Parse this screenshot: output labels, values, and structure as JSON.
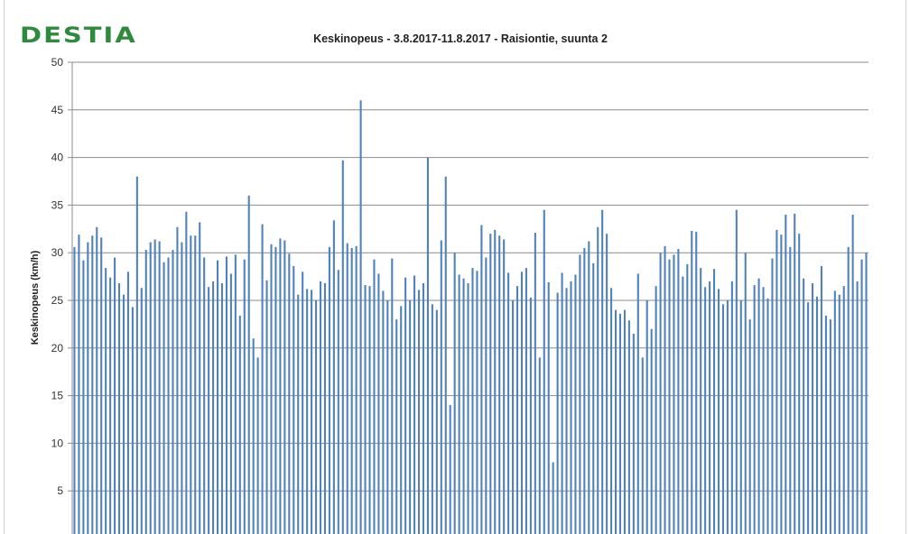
{
  "logo": {
    "text": "DESTIA",
    "color": "#2f8a3e"
  },
  "chart_data": {
    "type": "bar",
    "title": "Keskinopeus - 3.8.2017-11.8.2017 - Raisiontie, suunta 2",
    "xlabel": "",
    "ylabel": "Keskinopeus (km/h)",
    "ylim": [
      0,
      50
    ],
    "yticks": [
      5,
      10,
      15,
      20,
      25,
      30,
      35,
      40,
      45,
      50
    ],
    "grid": true,
    "bar_color": "#4f81bd",
    "values": [
      30.6,
      31.9,
      29.2,
      31.1,
      31.8,
      32.7,
      31.6,
      28.4,
      27.4,
      29.5,
      26.8,
      25.6,
      28.0,
      24.3,
      38.0,
      26.3,
      30.3,
      31.1,
      31.4,
      31.2,
      29.0,
      29.5,
      30.3,
      32.7,
      31.1,
      34.3,
      31.8,
      31.8,
      33.2,
      29.5,
      26.4,
      27.0,
      29.2,
      26.8,
      29.6,
      27.8,
      29.8,
      23.4,
      29.3,
      36.0,
      21.0,
      19.0,
      33.0,
      27.1,
      30.9,
      30.6,
      31.5,
      31.3,
      29.9,
      28.6,
      25.6,
      28.0,
      26.2,
      26.1,
      25.0,
      27.0,
      26.8,
      30.6,
      33.4,
      28.2,
      39.7,
      31.0,
      30.5,
      30.7,
      46.0,
      26.6,
      26.5,
      29.3,
      27.8,
      26.0,
      25.0,
      29.4,
      23.0,
      24.4,
      27.4,
      25.0,
      27.6,
      26.1,
      26.8,
      40.0,
      24.6,
      24.0,
      31.3,
      38.0,
      14.0,
      30.0,
      27.7,
      27.3,
      26.8,
      28.4,
      28.1,
      32.9,
      29.5,
      32.0,
      32.4,
      31.8,
      31.4,
      27.9,
      25.0,
      26.5,
      28.0,
      28.4,
      25.3,
      32.1,
      19.0,
      34.5,
      26.9,
      8.0,
      25.8,
      27.9,
      26.3,
      27.0,
      27.7,
      29.8,
      30.5,
      31.2,
      28.9,
      32.7,
      34.5,
      32.0,
      26.3,
      24.0,
      23.6,
      24.0,
      22.9,
      21.5,
      27.8,
      19.0,
      25.0,
      22.0,
      26.5,
      30.0,
      30.7,
      29.3,
      29.8,
      30.4,
      27.5,
      28.8,
      32.3,
      32.2,
      28.4,
      26.4,
      27.0,
      28.3,
      26.2,
      24.6,
      25.0,
      27.0,
      34.5,
      25.0,
      30.0,
      23.0,
      26.6,
      27.3,
      26.4,
      25.2,
      29.4,
      32.4,
      31.9,
      34.0,
      30.6,
      34.1,
      32.0,
      27.3,
      24.8,
      26.8,
      25.4,
      28.6,
      23.4,
      23.0,
      26.0,
      25.6,
      26.5,
      30.6,
      34.0,
      27.0,
      29.3,
      30.0
    ]
  }
}
